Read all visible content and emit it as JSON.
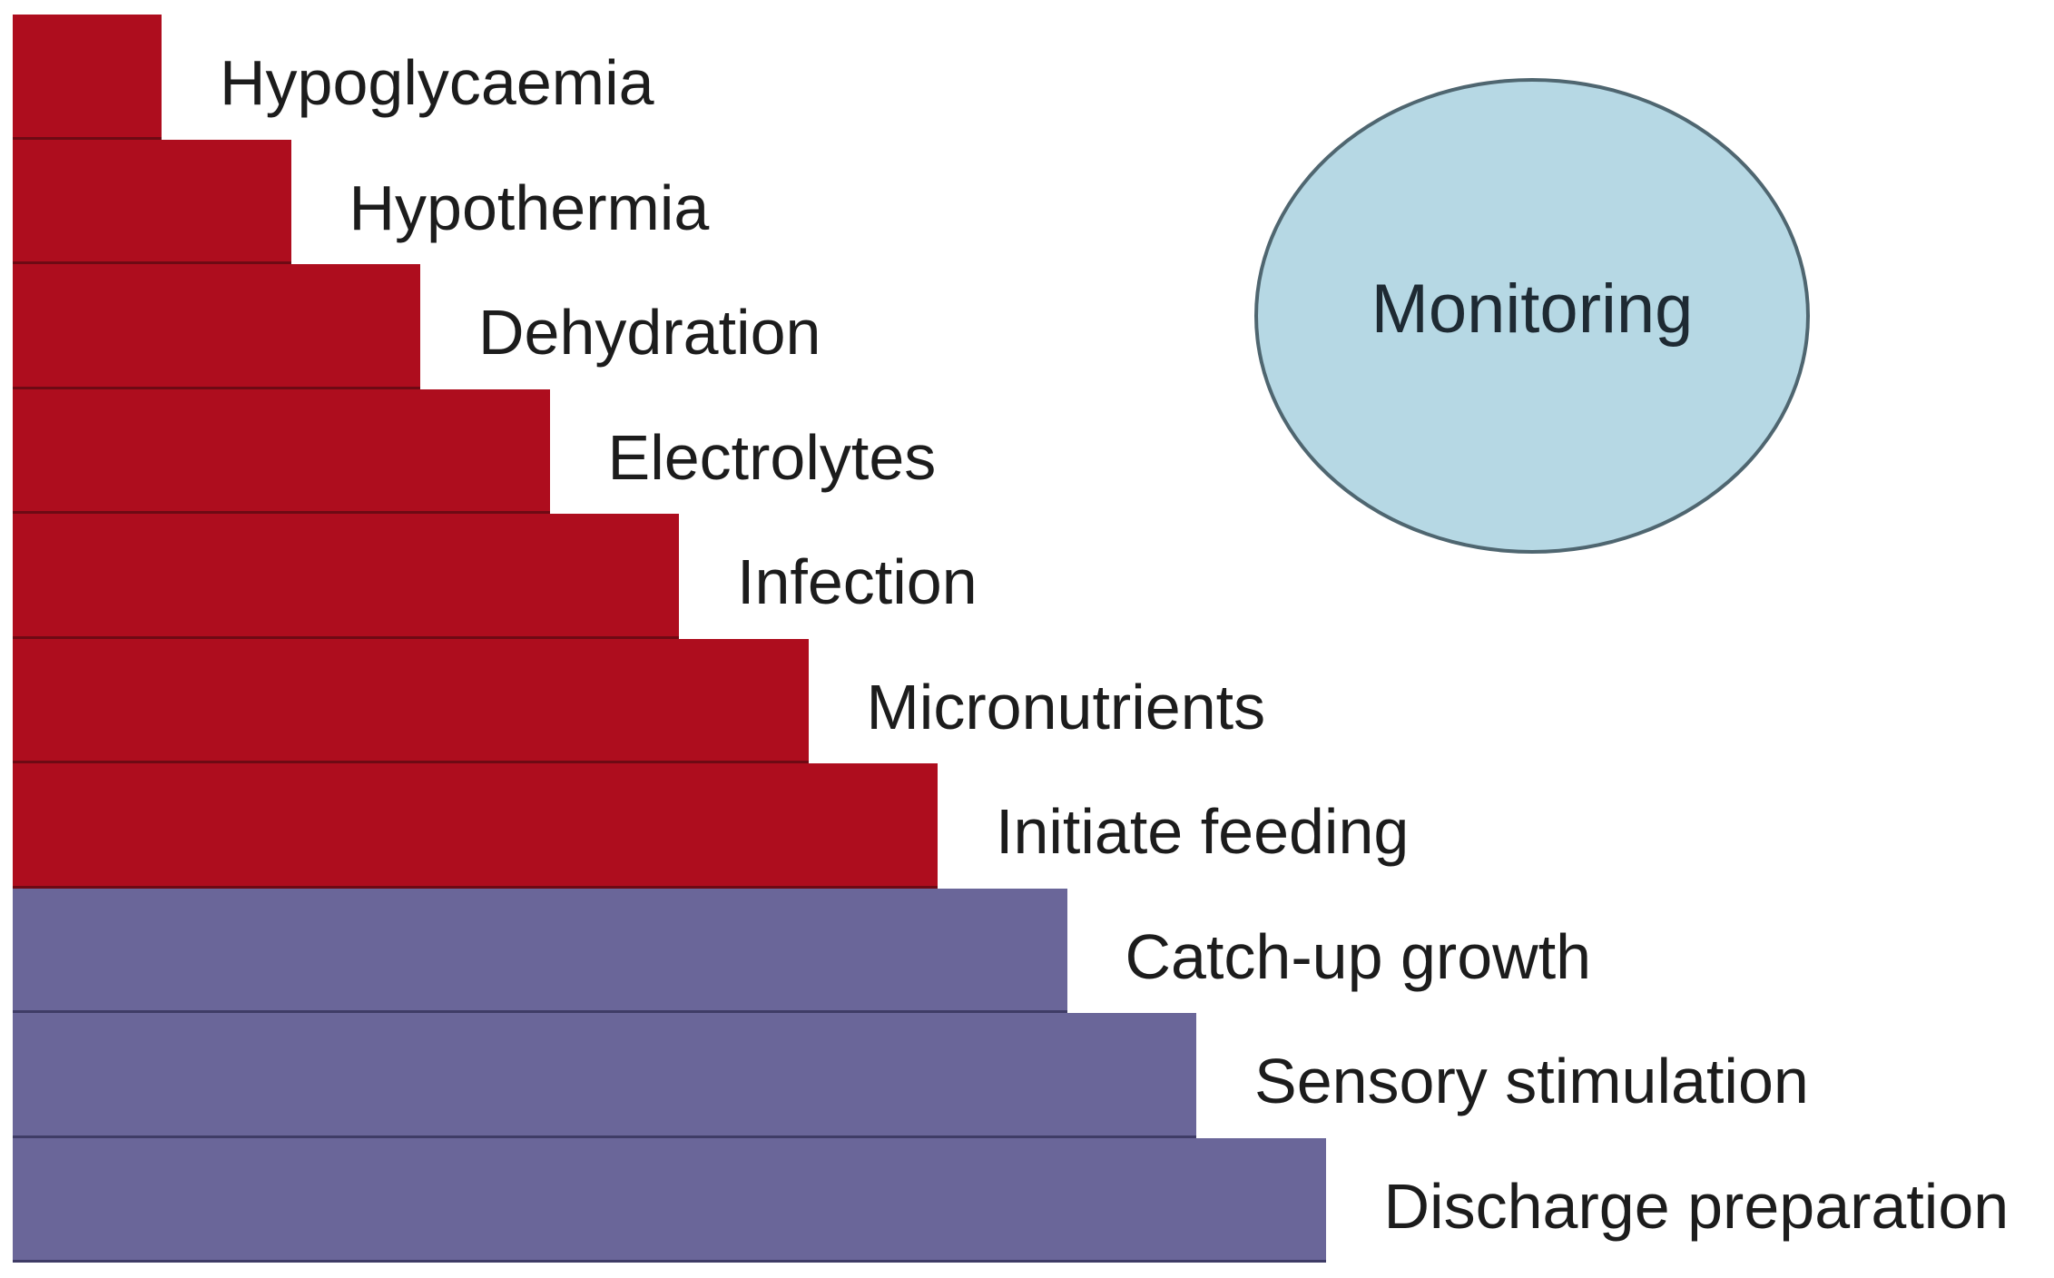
{
  "steps": [
    {
      "label": "Hypoglycaemia",
      "color": "#ae0d1e"
    },
    {
      "label": "Hypothermia",
      "color": "#ae0d1e"
    },
    {
      "label": "Dehydration",
      "color": "#ae0d1e"
    },
    {
      "label": "Electrolytes",
      "color": "#ae0d1e"
    },
    {
      "label": "Infection",
      "color": "#ae0d1e"
    },
    {
      "label": "Micronutrients",
      "color": "#ae0d1e"
    },
    {
      "label": "Initiate feeding",
      "color": "#ae0d1e"
    },
    {
      "label": "Catch-up growth",
      "color": "#6a6699"
    },
    {
      "label": "Sensory stimulation",
      "color": "#6a6699"
    },
    {
      "label": "Discharge preparation",
      "color": "#6a6699"
    }
  ],
  "monitoring": {
    "label": "Monitoring",
    "color": "#b6d8e4"
  }
}
